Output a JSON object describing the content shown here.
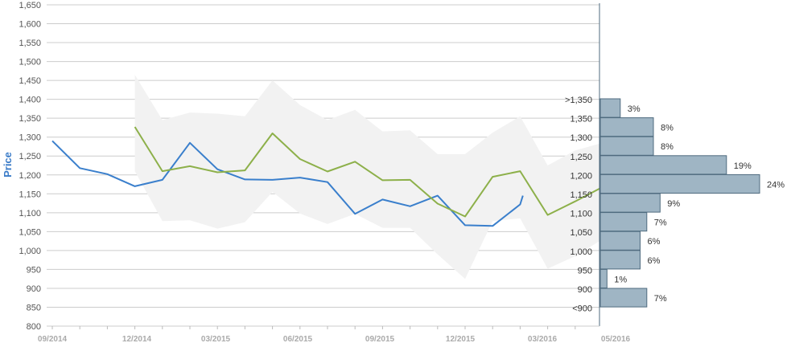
{
  "chart_data": {
    "type": "line",
    "ylabel": "Price",
    "ylim": [
      800,
      1650
    ],
    "y_ticks": [
      "800",
      "850",
      "900",
      "950",
      "1,000",
      "1,050",
      "1,100",
      "1,150",
      "1,200",
      "1,250",
      "1,300",
      "1,350",
      "1,400",
      "1,450",
      "1,500",
      "1,550",
      "1,600",
      "1,650"
    ],
    "x_ticks": [
      "09/2014",
      "12/2014",
      "03/2015",
      "06/2015",
      "09/2015",
      "12/2015",
      "03/2016",
      "05/2016"
    ],
    "grid": true,
    "colors": {
      "blue": "#3a7fcc",
      "green": "#8db04a",
      "band": "#f2f2f2",
      "bar_fill": "#9fb5c4",
      "bar_stroke": "#4f6b7f",
      "grid": "#cccccc",
      "axis": "#4f6b7f"
    },
    "series": [
      {
        "color": "#3a7fcc",
        "x": [
          "2014-09",
          "2014-10",
          "2014-11",
          "2014-12",
          "2015-01",
          "2015-02",
          "2015-03",
          "2015-04",
          "2015-05",
          "2015-06",
          "2015-07",
          "2015-08",
          "2015-09",
          "2015-10",
          "2015-11",
          "2015-12",
          "2016-01",
          "2016-02",
          "2016-02b"
        ],
        "values": [
          1290,
          1218,
          1202,
          1170,
          1187,
          1285,
          1215,
          1188,
          1187,
          1193,
          1181,
          1097,
          1135,
          1117,
          1145,
          1067,
          1065,
          1122,
          1145
        ]
      },
      {
        "color": "#8db04a",
        "x": [
          "2014-12",
          "2015-01",
          "2015-02",
          "2015-03",
          "2015-04",
          "2015-05",
          "2015-06",
          "2015-07",
          "2015-08",
          "2015-09",
          "2015-10",
          "2015-11",
          "2015-12",
          "2016-01",
          "2016-02",
          "2016-03",
          "2016-04",
          "2016-05"
        ],
        "values": [
          1327,
          1210,
          1223,
          1207,
          1212,
          1310,
          1242,
          1209,
          1235,
          1186,
          1187,
          1124,
          1090,
          1195,
          1210,
          1094,
          1130,
          1168
        ]
      }
    ],
    "band": {
      "upper": [
        1465,
        1345,
        1365,
        1362,
        1355,
        1450,
        1385,
        1345,
        1372,
        1315,
        1318,
        1255,
        1255,
        1312,
        1355,
        1225,
        1265,
        1285
      ],
      "lower": [
        1210,
        1078,
        1080,
        1058,
        1075,
        1155,
        1098,
        1070,
        1097,
        1060,
        1060,
        990,
        925,
        1078,
        1085,
        952,
        985,
        1030
      ]
    },
    "distribution": [
      {
        "label": ">1,350",
        "percent": 3,
        "text": "3%"
      },
      {
        "label": "1,350",
        "percent": 8,
        "text": "8%"
      },
      {
        "label": "1,300",
        "percent": 8,
        "text": "8%"
      },
      {
        "label": "1,250",
        "percent": 19,
        "text": "19%"
      },
      {
        "label": "1,200",
        "percent": 24,
        "text": "24%"
      },
      {
        "label": "1,150",
        "percent": 9,
        "text": "9%"
      },
      {
        "label": "1,100",
        "percent": 7,
        "text": "7%"
      },
      {
        "label": "1,050",
        "percent": 6,
        "text": "6%"
      },
      {
        "label": "1,000",
        "percent": 6,
        "text": "6%"
      },
      {
        "label": "950",
        "percent": 1,
        "text": "1%"
      },
      {
        "label": "900",
        "percent": 7,
        "text": "7%"
      },
      {
        "label": "<900",
        "percent": null,
        "text": ""
      }
    ]
  }
}
